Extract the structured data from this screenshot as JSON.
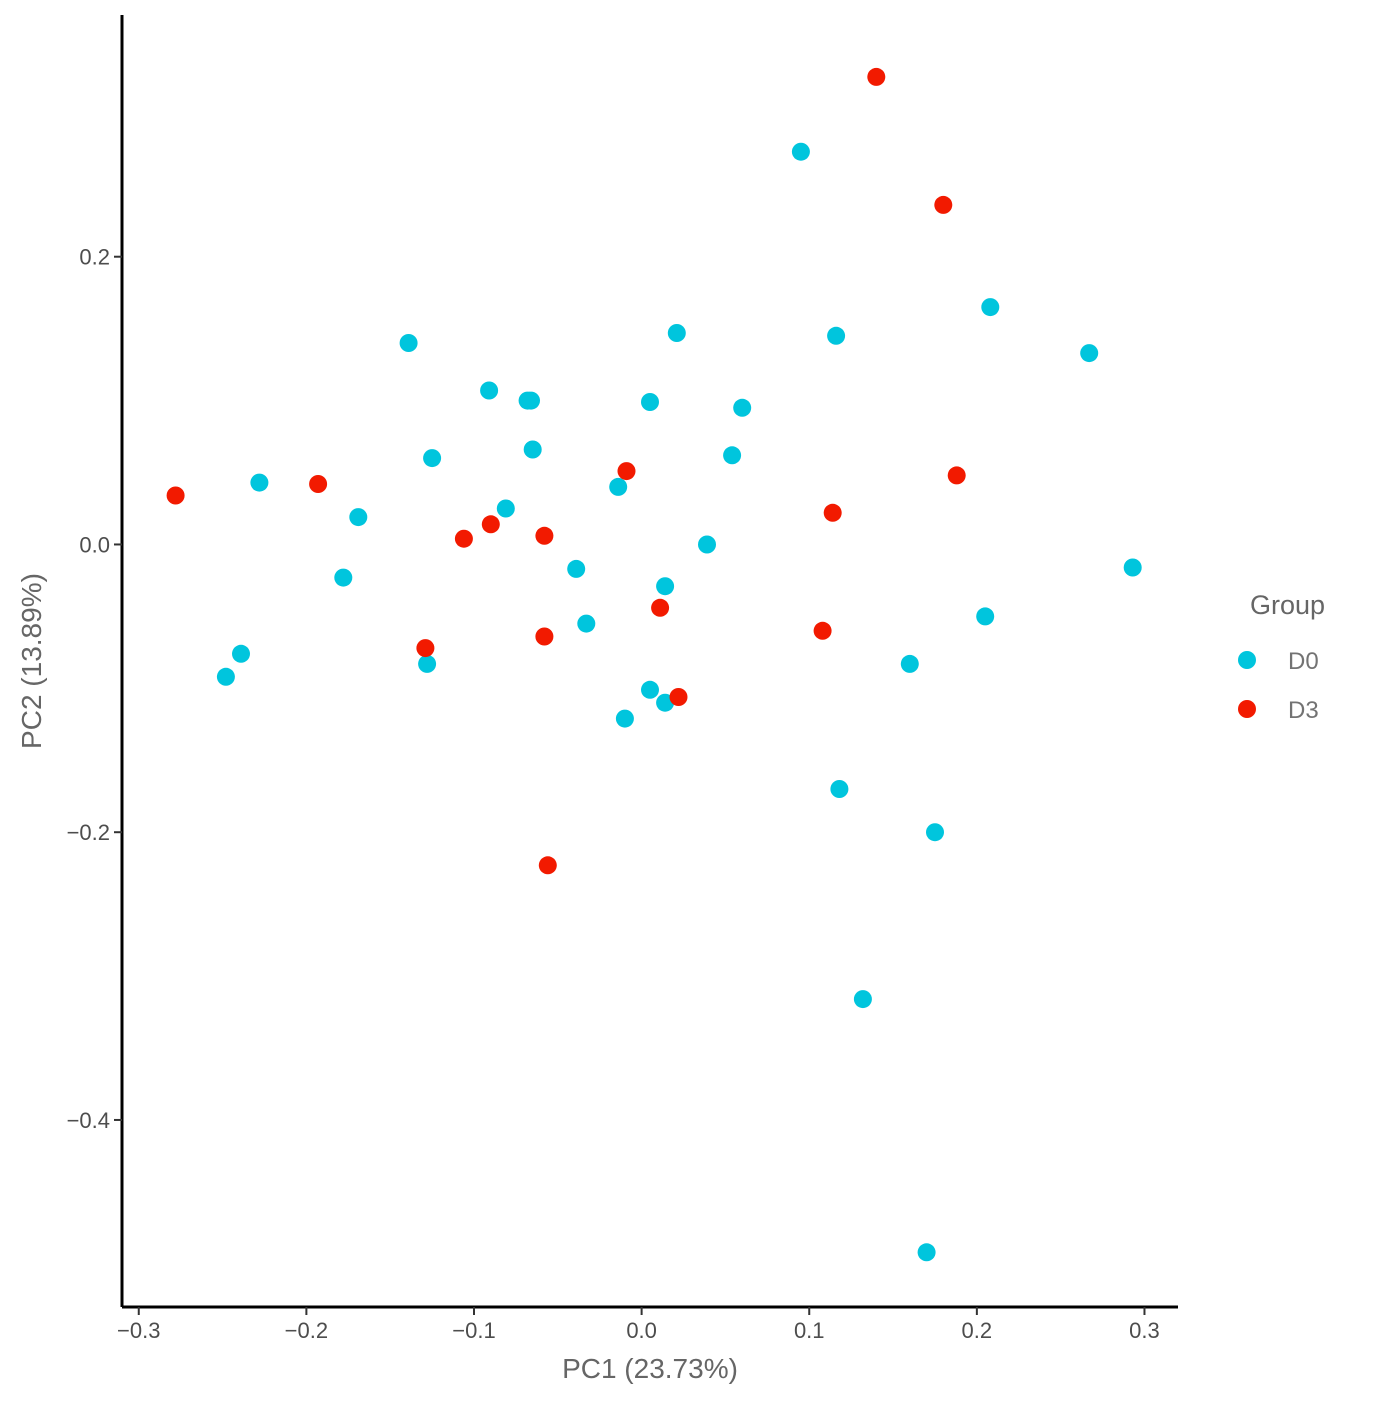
{
  "chart_data": {
    "type": "scatter",
    "xlabel": "PC1 (23.73%)",
    "ylabel": "PC2 (13.89%)",
    "xlim": [
      -0.31,
      0.32
    ],
    "ylim": [
      -0.53,
      0.368
    ],
    "x_ticks": [
      -0.3,
      -0.2,
      -0.1,
      0.0,
      0.1,
      0.2,
      0.3
    ],
    "x_tick_labels": [
      "−0.3",
      "−0.2",
      "−0.1",
      "0.0",
      "0.1",
      "0.2",
      "0.3"
    ],
    "y_ticks": [
      0.2,
      0.0,
      -0.2,
      -0.4
    ],
    "y_tick_labels": [
      "0.2",
      "0.0",
      "−0.2",
      "−0.4"
    ],
    "grid": false,
    "legend": {
      "title": "Group",
      "position": "right",
      "entries": [
        {
          "label": "D0",
          "color": "#00C5DD"
        },
        {
          "label": "D3",
          "color": "#F21A00"
        }
      ]
    },
    "series": [
      {
        "name": "D0",
        "color": "#00C5DD",
        "points": [
          [
            0.095,
            0.273
          ],
          [
            0.208,
            0.165
          ],
          [
            0.021,
            0.147
          ],
          [
            0.116,
            0.145
          ],
          [
            0.267,
            0.133
          ],
          [
            -0.139,
            0.14
          ],
          [
            -0.091,
            0.107
          ],
          [
            -0.068,
            0.1
          ],
          [
            -0.066,
            0.1
          ],
          [
            0.005,
            0.099
          ],
          [
            0.06,
            0.095
          ],
          [
            -0.065,
            0.066
          ],
          [
            0.054,
            0.062
          ],
          [
            -0.125,
            0.06
          ],
          [
            -0.228,
            0.043
          ],
          [
            -0.014,
            0.04
          ],
          [
            -0.081,
            0.025
          ],
          [
            -0.169,
            0.019
          ],
          [
            0.039,
            0.0
          ],
          [
            -0.178,
            -0.023
          ],
          [
            -0.039,
            -0.017
          ],
          [
            0.014,
            -0.029
          ],
          [
            0.293,
            -0.016
          ],
          [
            0.205,
            -0.05
          ],
          [
            -0.033,
            -0.055
          ],
          [
            -0.239,
            -0.076
          ],
          [
            -0.248,
            -0.092
          ],
          [
            -0.128,
            -0.083
          ],
          [
            0.16,
            -0.083
          ],
          [
            0.005,
            -0.101
          ],
          [
            0.014,
            -0.11
          ],
          [
            -0.01,
            -0.121
          ],
          [
            0.118,
            -0.17
          ],
          [
            0.175,
            -0.2
          ],
          [
            0.132,
            -0.316
          ],
          [
            0.17,
            -0.492
          ]
        ]
      },
      {
        "name": "D3",
        "color": "#F21A00",
        "points": [
          [
            0.14,
            0.325
          ],
          [
            0.18,
            0.236
          ],
          [
            0.188,
            0.048
          ],
          [
            -0.009,
            0.051
          ],
          [
            0.114,
            0.022
          ],
          [
            -0.278,
            0.034
          ],
          [
            -0.193,
            0.042
          ],
          [
            -0.106,
            0.004
          ],
          [
            -0.09,
            0.014
          ],
          [
            -0.058,
            0.006
          ],
          [
            0.011,
            -0.044
          ],
          [
            -0.129,
            -0.072
          ],
          [
            -0.058,
            -0.064
          ],
          [
            0.108,
            -0.06
          ],
          [
            0.022,
            -0.106
          ],
          [
            -0.056,
            -0.223
          ]
        ]
      }
    ]
  }
}
